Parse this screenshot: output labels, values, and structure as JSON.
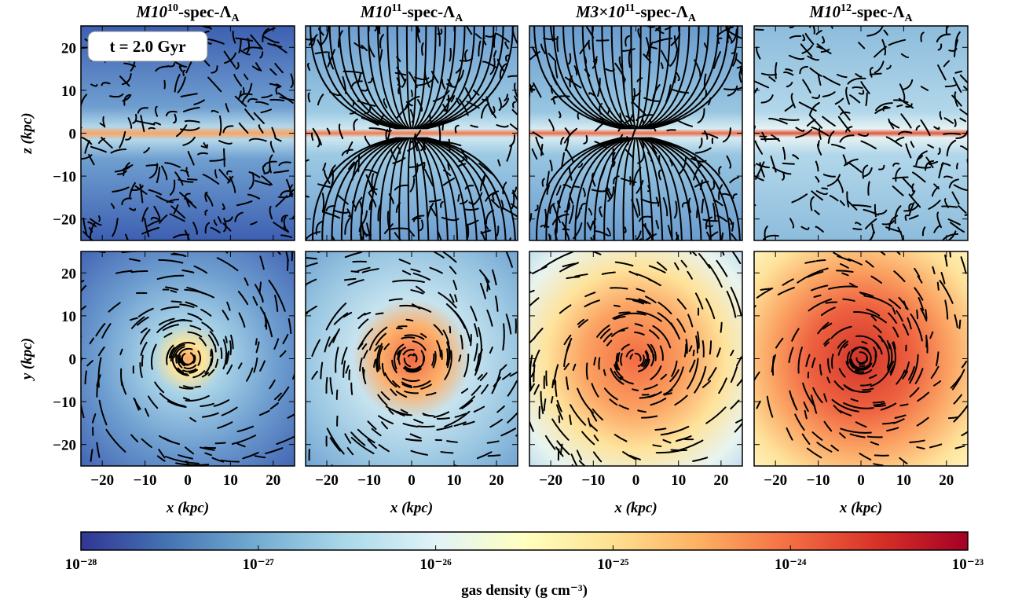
{
  "chart_data": {
    "type": "image-grid",
    "panel_titles": [
      {
        "prefix": "M10",
        "sup": "10",
        "suffix": "-spec-Λ",
        "sub": "A"
      },
      {
        "prefix": "M10",
        "sup": "11",
        "suffix": "-spec-Λ",
        "sub": "A"
      },
      {
        "prefix": "M3×10",
        "sup": "11",
        "suffix": "-spec-Λ",
        "sub": "A"
      },
      {
        "prefix": "M10",
        "sup": "12",
        "suffix": "-spec-Λ",
        "sub": "A"
      }
    ],
    "annotation": "t = 2.0 Gyr",
    "row_ylabels": [
      "z (kpc)",
      "y (kpc)"
    ],
    "xlabel": "x (kpc)",
    "xlim": [
      -25,
      25
    ],
    "ylim": [
      -25,
      25
    ],
    "xticks": [
      {
        "value": -20,
        "label": "−20"
      },
      {
        "value": -10,
        "label": "−10"
      },
      0,
      10,
      20
    ],
    "yticks": [
      {
        "value": -20,
        "label": "−20"
      },
      {
        "value": -10,
        "label": "−10"
      },
      0,
      10,
      20
    ],
    "colorbar": {
      "label": "gas density (g cm⁻³)",
      "log": true,
      "lim": [
        1e-28,
        1e-23
      ],
      "ticks": [
        {
          "value": 1e-28,
          "label": "10⁻²⁸"
        },
        {
          "value": 1e-27,
          "label": "10⁻²⁷"
        },
        {
          "value": 1e-26,
          "label": "10⁻²⁶"
        },
        {
          "value": 1e-25,
          "label": "10⁻²⁵"
        },
        {
          "value": 1e-24,
          "label": "10⁻²⁴"
        },
        {
          "value": 1e-23,
          "label": "10⁻²³"
        }
      ],
      "colors": [
        "#313695",
        "#4575b4",
        "#74add1",
        "#abd9e9",
        "#e0f3f8",
        "#ffffbf",
        "#fee090",
        "#fdae61",
        "#f46d43",
        "#d73027",
        "#a50026"
      ]
    }
  }
}
